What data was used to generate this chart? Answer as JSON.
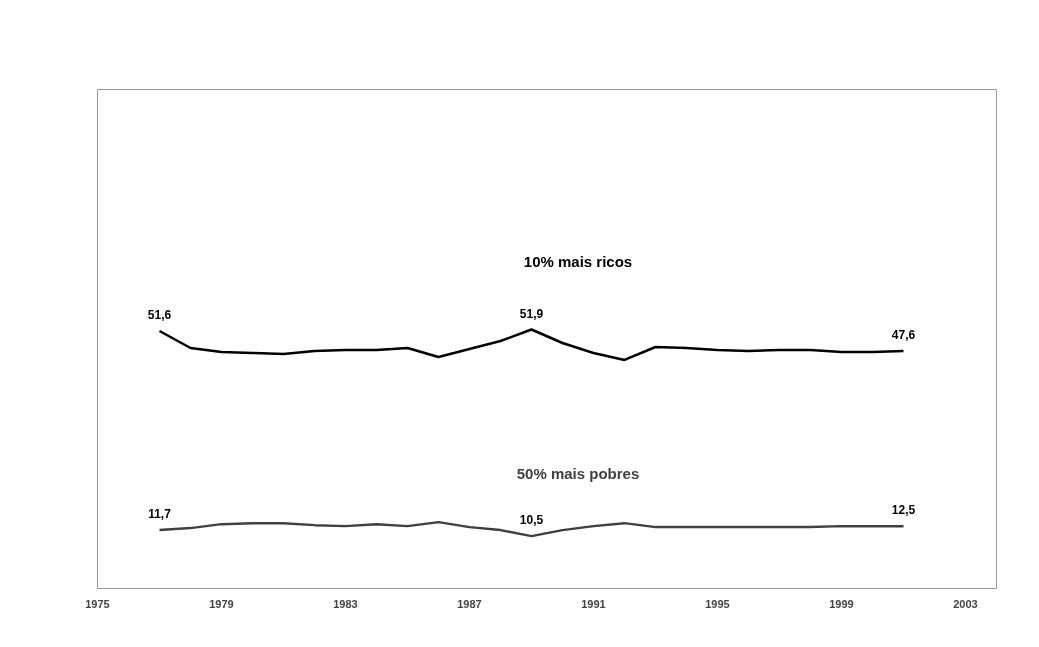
{
  "chart_data": {
    "type": "line",
    "x": [
      1977,
      1978,
      1979,
      1980,
      1981,
      1982,
      1983,
      1984,
      1985,
      1986,
      1987,
      1988,
      1989,
      1990,
      1991,
      1992,
      1993,
      1994,
      1995,
      1996,
      1997,
      1998,
      1999,
      2000,
      2001
    ],
    "series": [
      {
        "name": "10% mais ricos",
        "color": "#000000",
        "values": [
          51.6,
          48.2,
          47.4,
          47.2,
          47.0,
          47.6,
          47.8,
          47.8,
          48.2,
          46.4,
          48.0,
          49.6,
          51.9,
          49.2,
          47.2,
          45.8,
          48.4,
          48.2,
          47.8,
          47.6,
          47.8,
          47.8,
          47.4,
          47.4,
          47.6
        ],
        "value_labels": [
          "51,6",
          null,
          null,
          null,
          null,
          null,
          null,
          null,
          null,
          null,
          null,
          null,
          "51,9",
          null,
          null,
          null,
          null,
          null,
          null,
          null,
          null,
          null,
          null,
          null,
          "47,6"
        ]
      },
      {
        "name": "50% mais pobres",
        "color": "#404040",
        "values": [
          11.7,
          12.1,
          12.9,
          13.1,
          13.1,
          12.7,
          12.5,
          12.9,
          12.5,
          13.3,
          12.3,
          11.7,
          10.5,
          11.7,
          12.5,
          13.1,
          12.3,
          12.3,
          12.3,
          12.3,
          12.3,
          12.3,
          12.5,
          12.5,
          12.5
        ],
        "value_labels": [
          "11,7",
          null,
          null,
          null,
          null,
          null,
          null,
          null,
          null,
          null,
          null,
          null,
          "10,5",
          null,
          null,
          null,
          null,
          null,
          null,
          null,
          null,
          null,
          null,
          null,
          "12,5"
        ]
      }
    ],
    "xlim": [
      1975,
      2004
    ],
    "xticks": [
      1975,
      1979,
      1983,
      1987,
      1991,
      1995,
      1999,
      2003
    ],
    "ylim": [
      0,
      100
    ],
    "tick_labels": "x",
    "grid": false,
    "legend": false,
    "marker": "none",
    "line_style": "solid"
  }
}
